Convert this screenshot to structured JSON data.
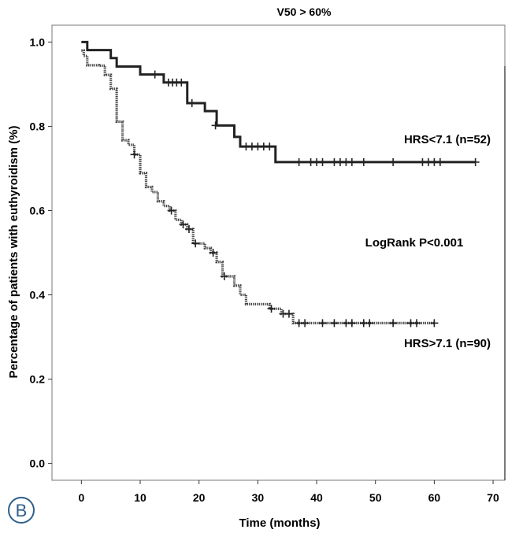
{
  "panel_letter": "B",
  "chart_data": {
    "type": "line",
    "step": true,
    "title": "V50 > 60%",
    "xlabel": "Time (months)",
    "ylabel": "Percentage of patients with euthyroidism (%)",
    "xlim": [
      -5,
      72
    ],
    "ylim": [
      -0.04,
      1.04
    ],
    "xticks": [
      0,
      10,
      20,
      30,
      40,
      50,
      60,
      70
    ],
    "yticks": [
      0.0,
      0.2,
      0.4,
      0.6,
      0.8,
      1.0
    ],
    "ytick_labels": [
      "0.0",
      "0.2",
      "0.4",
      "0.6",
      "0.8",
      "1.0"
    ],
    "grid": false,
    "annotations": [
      "LogRank P<0.001"
    ],
    "series": [
      {
        "name": "HRS<7.1 (n=52)",
        "style": "solid",
        "color": "#222222",
        "steps": [
          [
            0,
            1.0
          ],
          [
            1,
            0.981
          ],
          [
            5,
            0.962
          ],
          [
            6,
            0.942
          ],
          [
            10,
            0.923
          ],
          [
            14,
            0.904
          ],
          [
            18,
            0.855
          ],
          [
            21,
            0.836
          ],
          [
            23,
            0.802
          ],
          [
            26,
            0.775
          ],
          [
            27,
            0.752
          ],
          [
            33,
            0.715
          ],
          [
            67,
            0.715
          ]
        ],
        "censored": [
          [
            12.5,
            0.923
          ],
          [
            14.8,
            0.904
          ],
          [
            15.5,
            0.904
          ],
          [
            16.2,
            0.904
          ],
          [
            17,
            0.904
          ],
          [
            18.8,
            0.855
          ],
          [
            22.8,
            0.802
          ],
          [
            28,
            0.752
          ],
          [
            29,
            0.752
          ],
          [
            30,
            0.752
          ],
          [
            31,
            0.752
          ],
          [
            32,
            0.752
          ],
          [
            37,
            0.715
          ],
          [
            39,
            0.715
          ],
          [
            40,
            0.715
          ],
          [
            41,
            0.715
          ],
          [
            43,
            0.715
          ],
          [
            44,
            0.715
          ],
          [
            45,
            0.715
          ],
          [
            46,
            0.715
          ],
          [
            48,
            0.715
          ],
          [
            53,
            0.715
          ],
          [
            58,
            0.715
          ],
          [
            59,
            0.715
          ],
          [
            60,
            0.715
          ],
          [
            61,
            0.715
          ],
          [
            67,
            0.715
          ]
        ]
      },
      {
        "name": "HRS>7.1 (n=90)",
        "style": "dotted",
        "color": "#444444",
        "steps": [
          [
            0,
            0.98
          ],
          [
            0.4,
            0.967
          ],
          [
            1,
            0.945
          ],
          [
            3,
            0.944
          ],
          [
            4,
            0.922
          ],
          [
            5,
            0.889
          ],
          [
            6,
            0.811
          ],
          [
            7,
            0.767
          ],
          [
            8,
            0.756
          ],
          [
            9,
            0.733
          ],
          [
            10,
            0.689
          ],
          [
            11,
            0.656
          ],
          [
            12,
            0.644
          ],
          [
            13,
            0.622
          ],
          [
            14,
            0.611
          ],
          [
            15,
            0.6
          ],
          [
            16,
            0.578
          ],
          [
            17,
            0.567
          ],
          [
            18,
            0.556
          ],
          [
            19,
            0.522
          ],
          [
            21,
            0.511
          ],
          [
            22,
            0.5
          ],
          [
            23,
            0.478
          ],
          [
            24,
            0.444
          ],
          [
            26,
            0.422
          ],
          [
            27,
            0.4
          ],
          [
            28,
            0.378
          ],
          [
            30,
            0.378
          ],
          [
            32,
            0.367
          ],
          [
            34,
            0.355
          ],
          [
            36,
            0.333
          ],
          [
            60,
            0.333
          ]
        ],
        "censored": [
          [
            9,
            0.733
          ],
          [
            15.3,
            0.6
          ],
          [
            17.3,
            0.567
          ],
          [
            18.3,
            0.556
          ],
          [
            19.4,
            0.522
          ],
          [
            22.4,
            0.5
          ],
          [
            24.3,
            0.444
          ],
          [
            32.3,
            0.367
          ],
          [
            34.3,
            0.355
          ],
          [
            35.3,
            0.355
          ],
          [
            37,
            0.333
          ],
          [
            38,
            0.333
          ],
          [
            41,
            0.333
          ],
          [
            43,
            0.333
          ],
          [
            45,
            0.333
          ],
          [
            46,
            0.333
          ],
          [
            48,
            0.333
          ],
          [
            49,
            0.333
          ],
          [
            53,
            0.333
          ],
          [
            56,
            0.333
          ],
          [
            57,
            0.333
          ],
          [
            60,
            0.333
          ]
        ]
      }
    ]
  }
}
